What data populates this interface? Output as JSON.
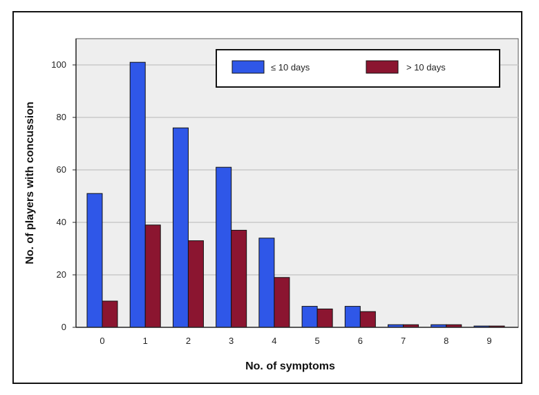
{
  "chart_data": {
    "type": "bar",
    "title": "",
    "xlabel": "No. of symptoms",
    "ylabel": "No. of players with concussion",
    "categories": [
      "0",
      "1",
      "2",
      "3",
      "4",
      "5",
      "6",
      "7",
      "8",
      "9"
    ],
    "series": [
      {
        "name": "≤ 10 days",
        "color": "#2f57e8",
        "values": [
          51,
          101,
          76,
          61,
          34,
          8,
          8,
          1,
          1,
          0.5
        ]
      },
      {
        "name": "> 10 days",
        "color": "#8b1530",
        "values": [
          10,
          39,
          33,
          37,
          19,
          7,
          6,
          1,
          1,
          0.5
        ]
      }
    ],
    "ylim": [
      0,
      110
    ],
    "yticks": [
      0,
      20,
      40,
      60,
      80,
      100
    ],
    "grid": true,
    "legend_position": "top-right",
    "plot_background": "#eeeeee"
  }
}
